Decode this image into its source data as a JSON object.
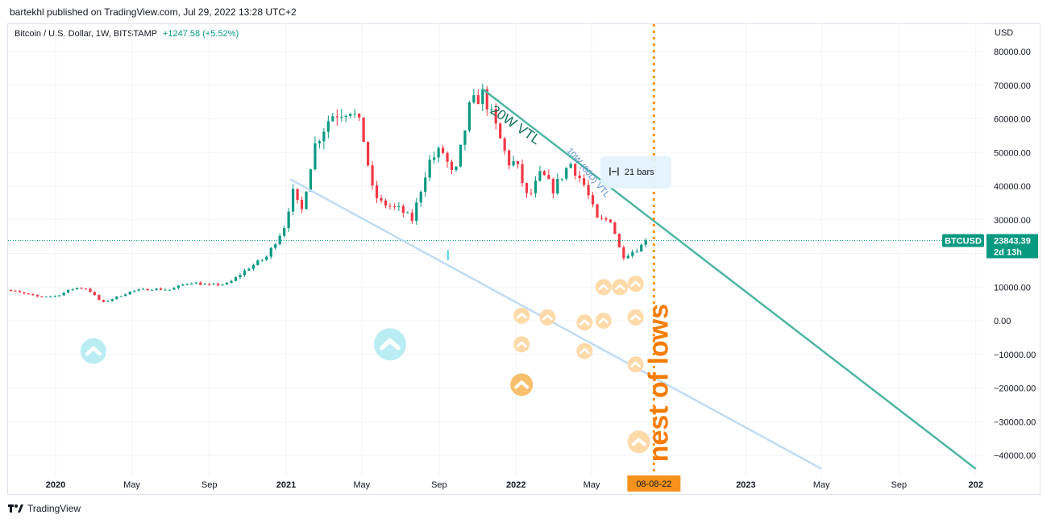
{
  "header": {
    "publisher": "bartekhl published on TradingView.com, Jul 29, 2022 13:28 UTC+2",
    "symbol": "Bitcoin / U.S. Dollar, 1W, BITSTAMP",
    "change": "+1247.58 (+5.52%)",
    "currency": "USD"
  },
  "footer": {
    "brand": "TradingView"
  },
  "chart_data": {
    "type": "candlestick",
    "symbol": "BTCUSD",
    "interval": "1W",
    "last_price": 23843.39,
    "last_price_label": "23843.39",
    "countdown": "2d 13h",
    "ylim": [
      -45000,
      87000
    ],
    "y_ticks": [
      80000,
      70000,
      60000,
      50000,
      40000,
      30000,
      20000,
      10000,
      0,
      -10000,
      -20000,
      -30000,
      -40000
    ],
    "y_tick_labels": [
      "80000.00",
      "70000.00",
      "60000.00",
      "50000.00",
      "40000.00",
      "30000.00",
      "20000.00",
      "10000.00",
      "0.00",
      "−10000.00",
      "−20000.00",
      "−30000.00",
      "−40000.00"
    ],
    "x_ticks": [
      {
        "label": "2020",
        "date": "2020-01-01",
        "year": true
      },
      {
        "label": "May",
        "date": "2020-05-01",
        "year": false
      },
      {
        "label": "Sep",
        "date": "2020-09-01",
        "year": false
      },
      {
        "label": "2021",
        "date": "2021-01-01",
        "year": true
      },
      {
        "label": "May",
        "date": "2021-05-01",
        "year": false
      },
      {
        "label": "Sep",
        "date": "2021-09-01",
        "year": false
      },
      {
        "label": "2022",
        "date": "2022-01-01",
        "year": true
      },
      {
        "label": "May",
        "date": "2022-05-01",
        "year": false
      },
      {
        "label": "2023",
        "date": "2023-01-01",
        "year": true
      },
      {
        "label": "May",
        "date": "2023-05-01",
        "year": false
      },
      {
        "label": "Sep",
        "date": "2023-09-01",
        "year": false
      },
      {
        "label": "202",
        "date": "2024-01-01",
        "year": true
      }
    ],
    "price_path": [
      [
        "2019-10-01",
        9800
      ],
      [
        "2019-11-01",
        8500
      ],
      [
        "2019-12-01",
        7200
      ],
      [
        "2020-01-01",
        7300
      ],
      [
        "2020-02-01",
        9800
      ],
      [
        "2020-02-20",
        9600
      ],
      [
        "2020-03-15",
        5300
      ],
      [
        "2020-04-01",
        6600
      ],
      [
        "2020-05-01",
        8800
      ],
      [
        "2020-06-01",
        9500
      ],
      [
        "2020-07-01",
        9200
      ],
      [
        "2020-08-01",
        11500
      ],
      [
        "2020-09-01",
        10500
      ],
      [
        "2020-10-01",
        11000
      ],
      [
        "2020-11-01",
        15500
      ],
      [
        "2020-12-01",
        19000
      ],
      [
        "2021-01-01",
        29000
      ],
      [
        "2021-01-10",
        39000
      ],
      [
        "2021-01-25",
        32000
      ],
      [
        "2021-02-15",
        52000
      ],
      [
        "2021-03-13",
        61000
      ],
      [
        "2021-04-14",
        63000
      ],
      [
        "2021-05-01",
        57000
      ],
      [
        "2021-05-19",
        38000
      ],
      [
        "2021-06-01",
        35000
      ],
      [
        "2021-07-01",
        33000
      ],
      [
        "2021-07-20",
        30000
      ],
      [
        "2021-08-15",
        47000
      ],
      [
        "2021-09-05",
        51000
      ],
      [
        "2021-09-25",
        42000
      ],
      [
        "2021-10-20",
        64000
      ],
      [
        "2021-11-10",
        67500
      ],
      [
        "2021-12-01",
        57000
      ],
      [
        "2021-12-20",
        47000
      ],
      [
        "2022-01-01",
        47000
      ],
      [
        "2022-01-20",
        36000
      ],
      [
        "2022-02-10",
        44000
      ],
      [
        "2022-03-01",
        39000
      ],
      [
        "2022-03-28",
        47000
      ],
      [
        "2022-04-20",
        40000
      ],
      [
        "2022-05-10",
        30000
      ],
      [
        "2022-06-01",
        30000
      ],
      [
        "2022-06-18",
        19000
      ],
      [
        "2022-07-10",
        21000
      ],
      [
        "2022-07-29",
        23843
      ]
    ],
    "marker_date": "2022-08-08",
    "marker_label": "08-08-22",
    "trendlines": [
      {
        "from": [
          "2021-11-08",
          69000
        ],
        "to": [
          "2024-01-01",
          -44000
        ],
        "color": "#4db6a1",
        "width": 2.5
      },
      {
        "from": [
          "2021-01-08",
          42000
        ],
        "to": [
          "2023-05-01",
          -44000
        ],
        "color": "#bfdcf4",
        "width": 2.5
      }
    ],
    "annotations": {
      "vtl_20w": "20W VTL",
      "vtl_10w": "10W (80D) VTL",
      "bars_count": "21 bars",
      "nest": "nest of lows"
    },
    "arrow_markers": [
      {
        "date": "2020-03-01",
        "value": -9000,
        "r": 16,
        "color": "#b2ebf2"
      },
      {
        "date": "2021-06-15",
        "value": -7000,
        "r": 20,
        "color": "#b2ebf2"
      },
      {
        "date": "2022-01-10",
        "value": 1500,
        "r": 10,
        "color": "#ffd6a0"
      },
      {
        "date": "2022-02-20",
        "value": 1000,
        "r": 10,
        "color": "#ffd6a0"
      },
      {
        "date": "2022-01-10",
        "value": -7000,
        "r": 10,
        "color": "#ffd6a0"
      },
      {
        "date": "2022-04-20",
        "value": -500,
        "r": 10,
        "color": "#ffd6a0"
      },
      {
        "date": "2022-04-20",
        "value": -9000,
        "r": 10,
        "color": "#ffd6a0"
      },
      {
        "date": "2022-05-20",
        "value": 0,
        "r": 10,
        "color": "#ffd6a0"
      },
      {
        "date": "2022-05-20",
        "value": 10000,
        "r": 10,
        "color": "#ffd6a0"
      },
      {
        "date": "2022-06-15",
        "value": 10000,
        "r": 10,
        "color": "#ffd6a0"
      },
      {
        "date": "2022-07-10",
        "value": 11000,
        "r": 10,
        "color": "#ffd6a0"
      },
      {
        "date": "2022-07-10",
        "value": 1000,
        "r": 10,
        "color": "#ffd6a0"
      },
      {
        "date": "2022-07-10",
        "value": -13000,
        "r": 10,
        "color": "#ffd6a0"
      },
      {
        "date": "2022-01-10",
        "value": -19000,
        "r": 14,
        "color": "#f7b85c"
      },
      {
        "date": "2022-07-15",
        "value": -36000,
        "r": 14,
        "color": "#ffd6a0"
      }
    ],
    "colors": {
      "up": "#089981",
      "down": "#f23645",
      "price_line": "#089981",
      "marker": "#f7931a",
      "nest": "#f57c00",
      "vtl20_text": "#0f6e5b",
      "vtl10_text": "#5b8fd6"
    }
  }
}
